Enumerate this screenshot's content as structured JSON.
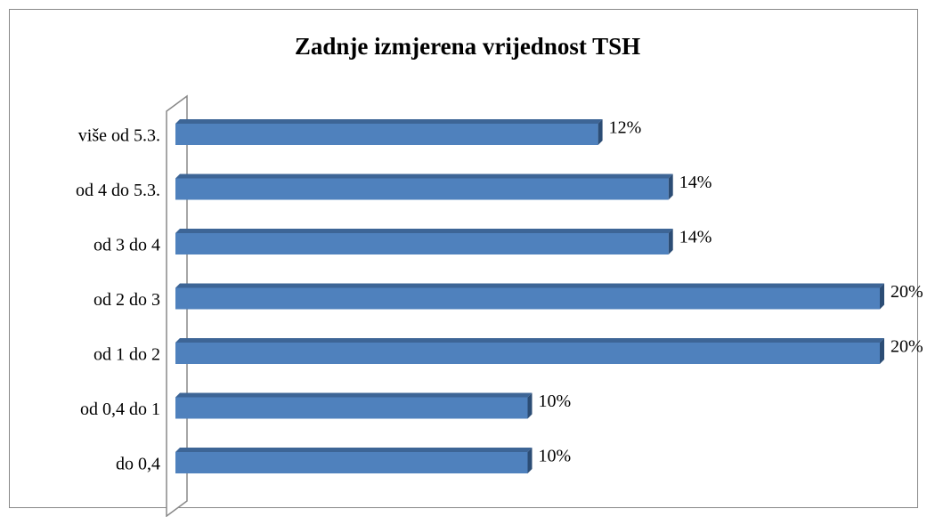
{
  "chart_data": {
    "type": "bar",
    "orientation": "horizontal",
    "title": "Zadnje izmjerena vrijednost TSH",
    "categories": [
      "do 0,4",
      "od 0,4 do 1",
      "od 1 do 2",
      "od 2 do 3",
      "od 3 do 4",
      "od 4 do 5.3.",
      "više od 5.3."
    ],
    "values": [
      10,
      10,
      20,
      20,
      14,
      14,
      12
    ],
    "value_labels": [
      "10%",
      "10%",
      "20%",
      "20%",
      "14%",
      "14%",
      "12%"
    ],
    "color": "#4f81bd"
  }
}
